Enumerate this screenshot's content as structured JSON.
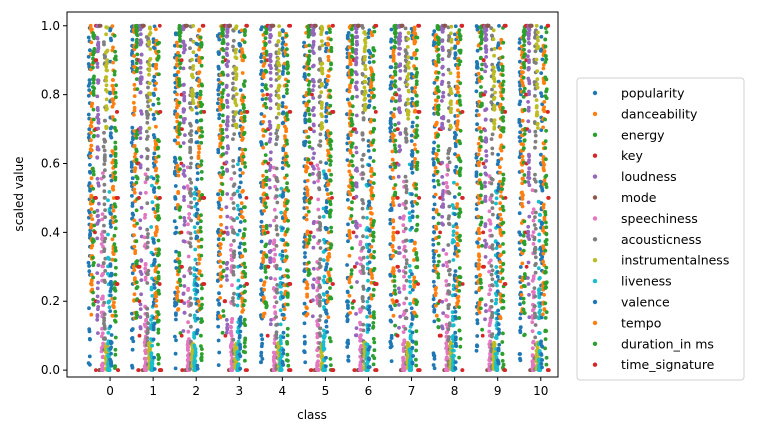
{
  "chart_data": {
    "type": "scatter",
    "xlabel": "class",
    "ylabel": "scaled value",
    "categories": [
      0,
      1,
      2,
      3,
      4,
      5,
      6,
      7,
      8,
      9,
      10
    ],
    "x_ticks": [
      "0",
      "1",
      "2",
      "3",
      "4",
      "5",
      "6",
      "7",
      "8",
      "9",
      "10"
    ],
    "y_ticks": [
      "0.0",
      "0.2",
      "0.4",
      "0.6",
      "0.8",
      "1.0"
    ],
    "xlim": [
      -1.0,
      10.4
    ],
    "ylim": [
      -0.02,
      1.04
    ],
    "grid": false,
    "legend_position": "right",
    "series": [
      {
        "name": "popularity",
        "color": "#1f77b4",
        "offset": -0.48,
        "distribution": "wide",
        "levels": []
      },
      {
        "name": "danceability",
        "color": "#ff7f0e",
        "offset": -0.43,
        "distribution": "mid",
        "levels": []
      },
      {
        "name": "energy",
        "color": "#2ca02c",
        "offset": -0.38,
        "distribution": "high",
        "levels": []
      },
      {
        "name": "key",
        "color": "#d62728",
        "offset": -0.33,
        "distribution": "discrete",
        "levels": [
          0,
          0.1,
          0.2,
          0.3,
          0.4,
          0.5,
          0.6,
          0.7,
          0.8,
          0.9,
          1.0
        ]
      },
      {
        "name": "loudness",
        "color": "#9467bd",
        "offset": -0.28,
        "distribution": "high",
        "levels": []
      },
      {
        "name": "mode",
        "color": "#8c564b",
        "offset": -0.23,
        "distribution": "binary",
        "levels": [
          0,
          1
        ]
      },
      {
        "name": "speechiness",
        "color": "#e377c2",
        "offset": -0.18,
        "distribution": "low",
        "levels": []
      },
      {
        "name": "acousticness",
        "color": "#7f7f7f",
        "offset": -0.13,
        "distribution": "wide",
        "levels": []
      },
      {
        "name": "instrumentalness",
        "color": "#bcbd22",
        "offset": -0.08,
        "distribution": "bimodal",
        "levels": []
      },
      {
        "name": "liveness",
        "color": "#17becf",
        "offset": -0.03,
        "distribution": "low",
        "levels": []
      },
      {
        "name": "valence",
        "color": "#1f77b4",
        "offset": 0.02,
        "distribution": "wide",
        "levels": []
      },
      {
        "name": "tempo",
        "color": "#ff7f0e",
        "offset": 0.07,
        "distribution": "mid",
        "levels": []
      },
      {
        "name": "duration_in ms",
        "color": "#2ca02c",
        "offset": 0.12,
        "distribution": "wide",
        "levels": []
      },
      {
        "name": "time_signature",
        "color": "#d62728",
        "offset": 0.17,
        "distribution": "discrete",
        "levels": [
          0,
          0.25,
          0.5,
          0.75,
          1.0
        ]
      }
    ]
  }
}
